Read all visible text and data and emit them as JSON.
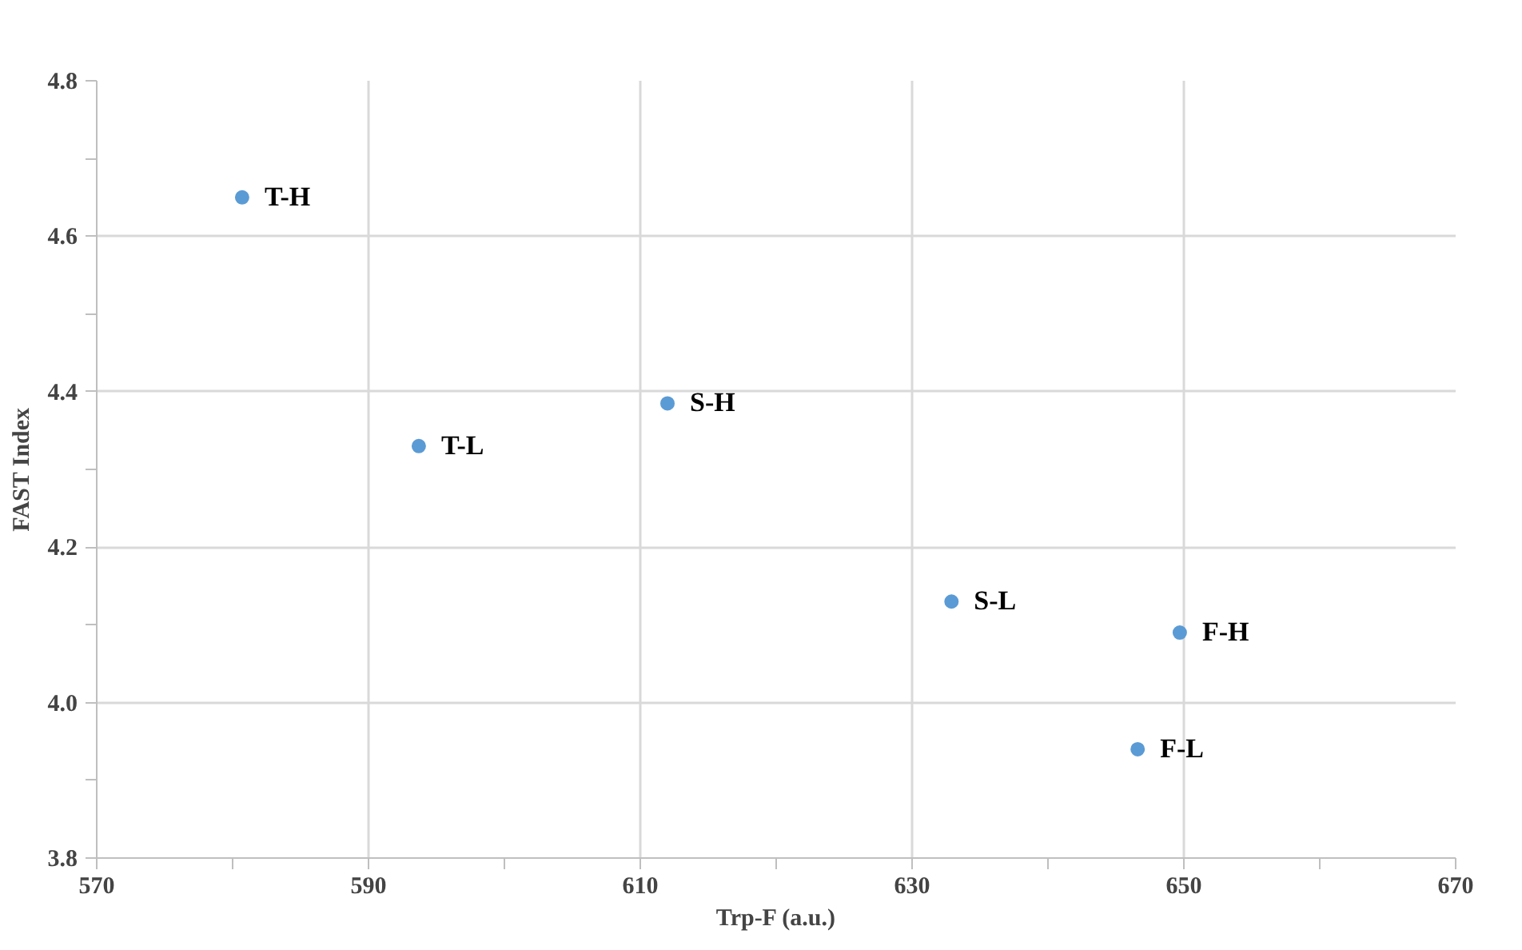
{
  "chart_data": {
    "type": "scatter",
    "xlabel": "Trp-F (a.u.)",
    "ylabel": "FAST Index",
    "x": [
      580.7,
      593.7,
      612.0,
      632.9,
      649.7,
      646.6
    ],
    "series": [
      {
        "color": "#5b9bd5",
        "values": [
          4.65,
          4.33,
          4.385,
          4.13,
          4.09,
          3.94
        ]
      }
    ],
    "annotations": [
      {
        "text": "T-H",
        "x": 580.7,
        "y": 4.65
      },
      {
        "text": "T-L",
        "x": 593.7,
        "y": 4.33
      },
      {
        "text": "S-H",
        "x": 612.0,
        "y": 4.385
      },
      {
        "text": "S-L",
        "x": 632.9,
        "y": 4.13
      },
      {
        "text": "F-H",
        "x": 649.7,
        "y": 4.09
      },
      {
        "text": "F-L",
        "x": 646.6,
        "y": 3.94
      }
    ],
    "xlim": [
      570,
      670
    ],
    "xticks": [
      570,
      {
        "value": 580,
        "label": null
      },
      590,
      {
        "value": 600,
        "label": null
      },
      610,
      {
        "value": 620,
        "label": null
      },
      630,
      {
        "value": 640,
        "label": null
      },
      650,
      {
        "value": 660,
        "label": null
      },
      670
    ],
    "ylim": [
      3.8,
      4.8
    ],
    "yticks": [
      {
        "value": 3.8,
        "label": "3.8"
      },
      {
        "value": 3.9,
        "label": null
      },
      {
        "value": 4.0,
        "label": "4.0"
      },
      {
        "value": 4.1,
        "label": null
      },
      {
        "value": 4.2,
        "label": "4.2"
      },
      {
        "value": 4.3,
        "label": null
      },
      {
        "value": 4.4,
        "label": "4.4"
      },
      {
        "value": 4.5,
        "label": null
      },
      {
        "value": 4.6,
        "label": "4.6"
      },
      {
        "value": 4.7,
        "label": null
      },
      {
        "value": 4.8,
        "label": "4.8"
      }
    ],
    "grid": true,
    "marker": "circle"
  }
}
